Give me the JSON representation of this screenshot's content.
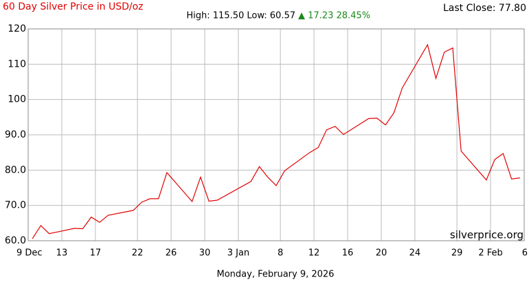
{
  "chart_data": {
    "type": "line",
    "title": "60 Day Silver Price in USD/oz",
    "last_close": "Last Close: 77.80",
    "stats": "High: 115.50 Low: 60.57",
    "change": "▲ 17.23 28.45%",
    "change_color": "#1a8a1a",
    "watermark": "silverprice.org",
    "date_caption": "Monday, February 9, 2026",
    "grid": true,
    "xlim": [
      0,
      59
    ],
    "ylim": [
      60,
      120
    ],
    "xticks": [
      {
        "value": 0,
        "label": "9 Dec"
      },
      {
        "value": 4,
        "label": "13"
      },
      {
        "value": 8,
        "label": "17"
      },
      {
        "value": 13,
        "label": "22"
      },
      {
        "value": 17,
        "label": "26"
      },
      {
        "value": 21,
        "label": "30"
      },
      {
        "value": 25,
        "label": "3 Jan"
      },
      {
        "value": 30,
        "label": "8"
      },
      {
        "value": 34,
        "label": "12"
      },
      {
        "value": 38,
        "label": "16"
      },
      {
        "value": 42,
        "label": "20"
      },
      {
        "value": 46,
        "label": "24"
      },
      {
        "value": 51,
        "label": "29"
      },
      {
        "value": 55,
        "label": "2 Feb"
      },
      {
        "value": 59,
        "label": "6"
      }
    ],
    "yticks": [
      {
        "value": 60,
        "label": "60.0"
      },
      {
        "value": 70,
        "label": "70.0"
      },
      {
        "value": 80,
        "label": "80.0"
      },
      {
        "value": 90,
        "label": "90.0"
      },
      100,
      110,
      120
    ],
    "x": [
      0.5,
      1.5,
      2.5,
      3.5,
      5.5,
      6.5,
      7.5,
      8.5,
      9.5,
      12.5,
      13.5,
      14.5,
      15.5,
      16.5,
      19.5,
      20.5,
      21.5,
      22.5,
      26.5,
      27.5,
      28.5,
      29.5,
      30.5,
      33.5,
      34.5,
      35.5,
      36.5,
      37.5,
      40.5,
      41.5,
      42.5,
      43.5,
      44.5,
      47.5,
      48.5,
      49.5,
      50.5,
      51.5,
      54.5,
      55.5,
      56.5,
      57.5,
      58.5
    ],
    "series": [
      {
        "name": "Silver",
        "color": "#e00000",
        "values": [
          60.57,
          64.3,
          62.0,
          62.5,
          63.5,
          63.4,
          66.7,
          65.2,
          67.2,
          68.6,
          70.9,
          71.9,
          71.9,
          79.3,
          71.1,
          78.0,
          71.2,
          71.5,
          76.8,
          81.0,
          78.0,
          75.6,
          79.8,
          85.0,
          86.4,
          91.4,
          92.4,
          90.1,
          94.6,
          94.7,
          92.8,
          96.2,
          103.3,
          115.5,
          106.0,
          113.4,
          114.6,
          85.4,
          77.2,
          83.0,
          84.7,
          77.5,
          77.8
        ]
      }
    ]
  }
}
